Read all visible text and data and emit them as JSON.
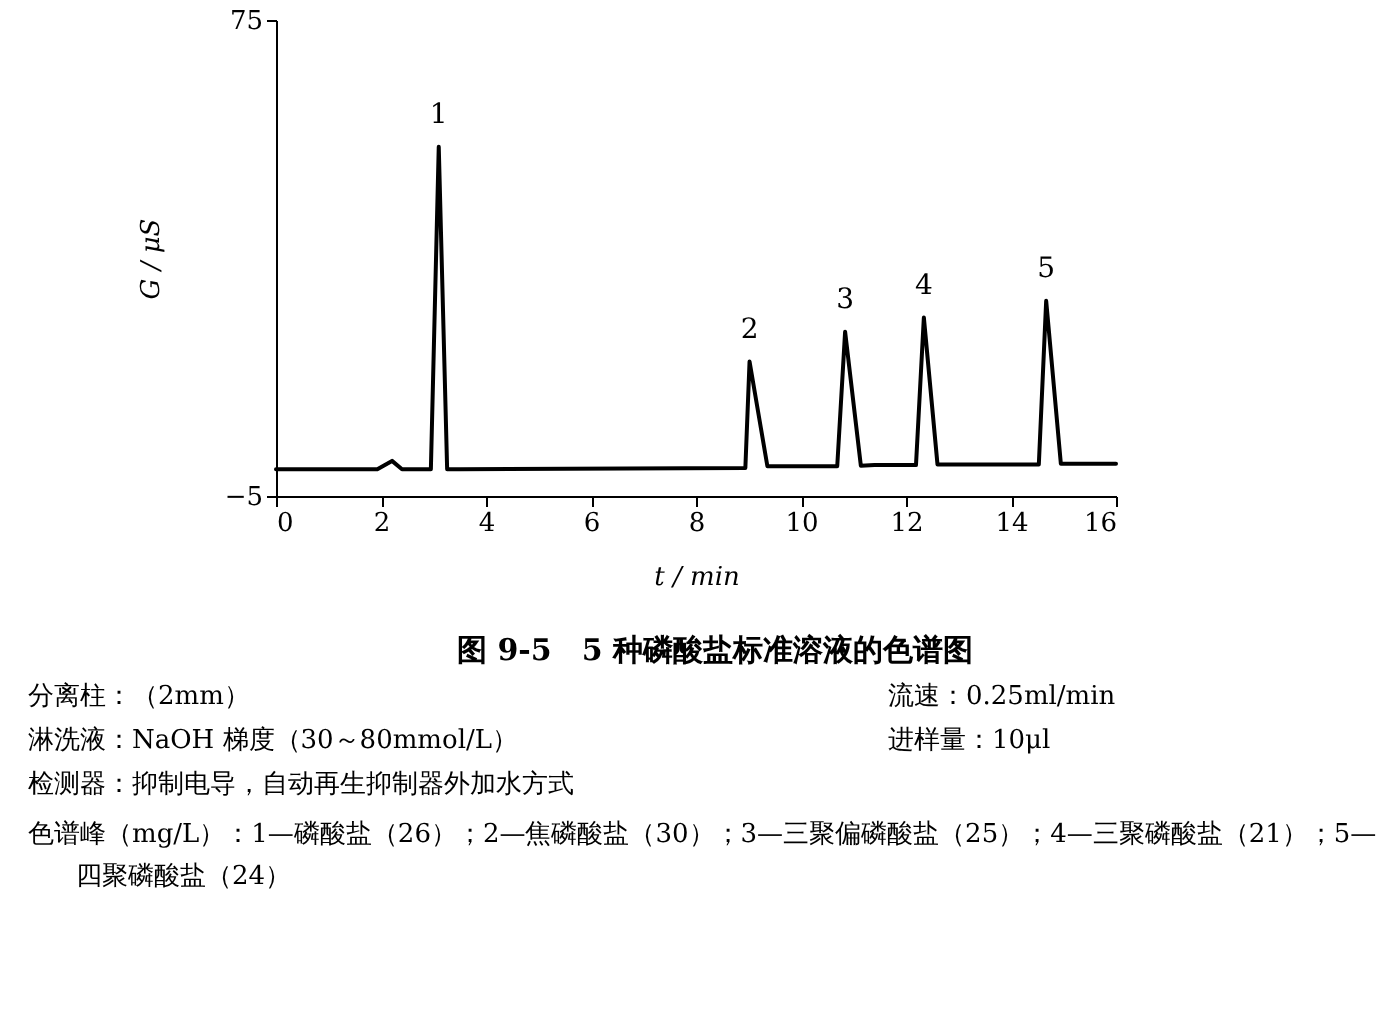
{
  "chart_data": {
    "type": "line",
    "title": "图 9-5　5 种磷酸盐标准溶液的色谱图",
    "xlabel": "t / min",
    "ylabel": "G / μS",
    "xlim": [
      0,
      16
    ],
    "xticks": [
      0,
      2,
      4,
      6,
      8,
      10,
      12,
      14,
      16
    ],
    "ylim": [
      -5,
      75
    ],
    "yticks": [
      -5,
      75
    ],
    "grid": false,
    "marker": "none",
    "line_style": "solid",
    "series": [
      {
        "color": "#000000",
        "x": [
          0,
          1.93,
          2.21,
          2.4,
          2.95,
          3.1,
          3.26,
          3.5,
          8.94,
          9.02,
          9.36,
          9.6,
          10.69,
          10.84,
          11.14,
          11.4,
          12.19,
          12.34,
          12.6,
          12.9,
          14.53,
          14.67,
          14.95,
          15.2,
          16
        ],
        "values": [
          -0.5,
          -0.5,
          0.9,
          -0.5,
          -0.5,
          53.7,
          -0.5,
          -0.5,
          -0.3,
          17.6,
          0,
          0,
          0,
          22.6,
          0.1,
          0.2,
          0.2,
          25.0,
          0.3,
          0.3,
          0.3,
          27.8,
          0.4,
          0.4,
          0.4
        ]
      }
    ],
    "annotations": [
      {
        "text": "1",
        "x": 3.1,
        "y": 53.7
      },
      {
        "text": "2",
        "x": 9.02,
        "y": 17.6
      },
      {
        "text": "3",
        "x": 10.84,
        "y": 22.6
      },
      {
        "text": "4",
        "x": 12.34,
        "y": 25.0
      },
      {
        "text": "5",
        "x": 14.67,
        "y": 27.8
      },
      "分离柱：（2mm）",
      "流速：0.25ml/min",
      "淋洗液：NaOH 梯度（30～80mmol/L）",
      "进样量：10μl",
      "检测器：抑制电导，自动再生抑制器外加水方式",
      "色谱峰（mg/L）：1—磷酸盐（26）；2—焦磷酸盐（30）；3—三聚偏磷酸盐（25）；4—三聚磷酸盐（21）；5—四聚磷酸盐（24）"
    ]
  }
}
